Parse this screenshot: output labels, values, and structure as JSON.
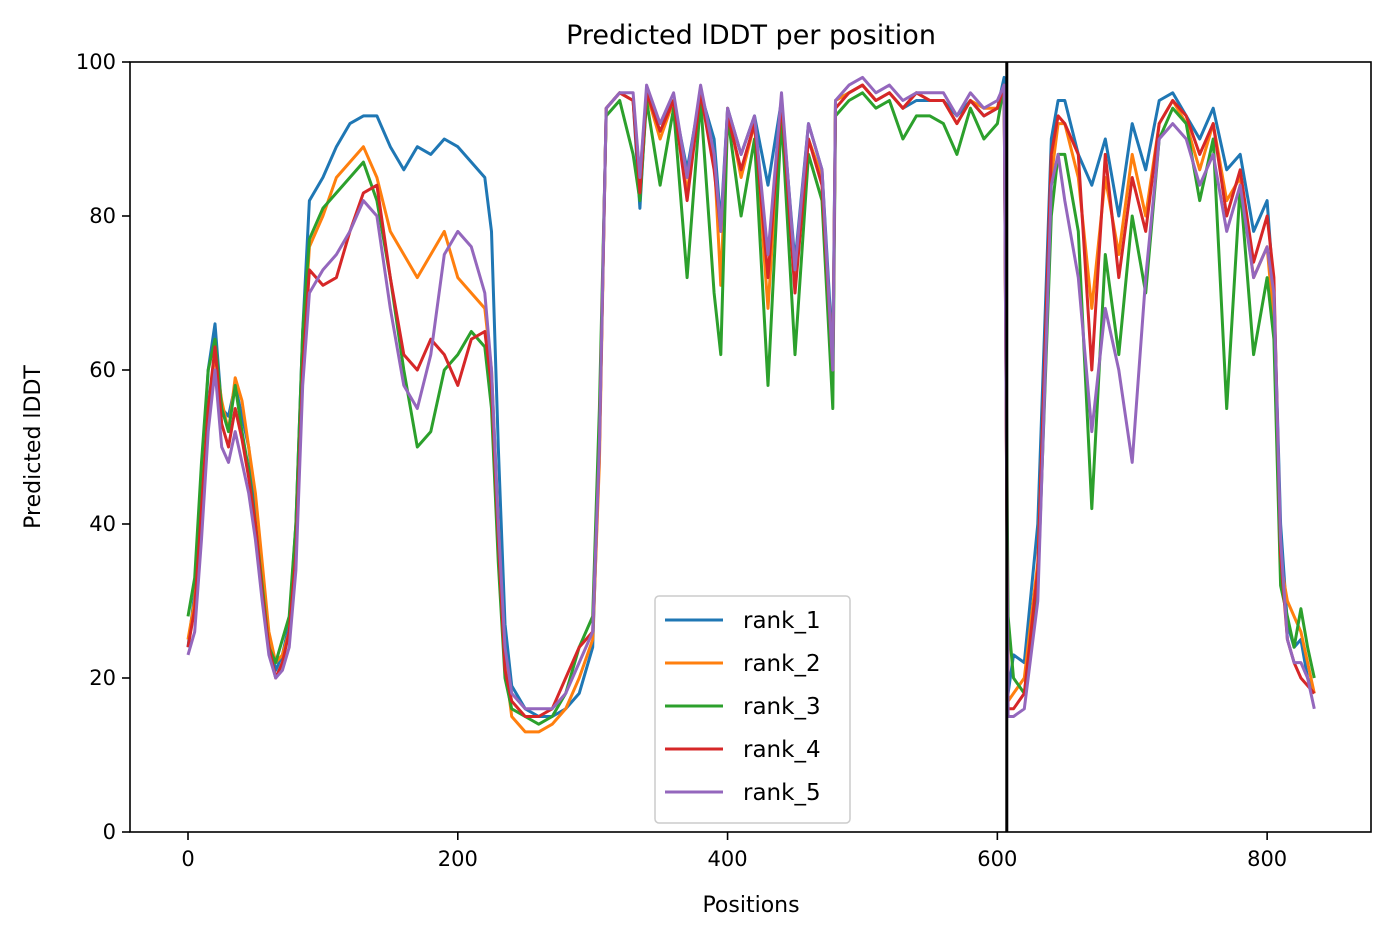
{
  "chart_data": {
    "type": "line",
    "title": "Predicted lDDT per position",
    "xlabel": "Positions",
    "ylabel": "Predicted lDDT",
    "xlim": [
      -43,
      877
    ],
    "ylim": [
      0,
      100
    ],
    "xticks": [
      0,
      200,
      400,
      600,
      800
    ],
    "yticks": [
      0,
      20,
      40,
      60,
      80,
      100
    ],
    "grid": false,
    "legend_position": "lower-center",
    "chain_break": 607,
    "series": [
      {
        "name": "rank_1",
        "color": "#1f77b4",
        "x": [
          0,
          5,
          10,
          15,
          20,
          25,
          30,
          35,
          40,
          45,
          50,
          55,
          60,
          65,
          70,
          75,
          80,
          85,
          90,
          100,
          110,
          120,
          130,
          140,
          150,
          160,
          170,
          180,
          190,
          200,
          210,
          220,
          225,
          230,
          235,
          240,
          250,
          260,
          270,
          280,
          290,
          300,
          305,
          310,
          320,
          330,
          335,
          340,
          350,
          360,
          370,
          380,
          390,
          395,
          400,
          410,
          420,
          430,
          440,
          450,
          460,
          470,
          478,
          480,
          490,
          500,
          510,
          520,
          530,
          540,
          550,
          560,
          570,
          580,
          590,
          600,
          605,
          608,
          612,
          620,
          630,
          640,
          645,
          650,
          660,
          670,
          680,
          690,
          700,
          710,
          720,
          730,
          740,
          750,
          760,
          770,
          780,
          790,
          800,
          805,
          810,
          815,
          820,
          825,
          830,
          835
        ],
        "y": [
          24,
          31,
          45,
          60,
          66,
          55,
          54,
          58,
          54,
          50,
          42,
          33,
          25,
          21,
          23,
          27,
          40,
          65,
          82,
          85,
          89,
          92,
          93,
          93,
          89,
          86,
          89,
          88,
          90,
          89,
          87,
          85,
          78,
          50,
          27,
          19,
          16,
          15,
          15,
          16,
          18,
          24,
          50,
          94,
          96,
          95,
          81,
          96,
          92,
          95,
          86,
          96,
          90,
          79,
          94,
          88,
          93,
          84,
          95,
          74,
          92,
          86,
          62,
          95,
          96,
          97,
          95,
          96,
          94,
          95,
          95,
          95,
          93,
          95,
          93,
          94,
          98,
          18,
          23,
          22,
          40,
          90,
          95,
          95,
          88,
          84,
          90,
          80,
          92,
          86,
          95,
          96,
          93,
          90,
          94,
          86,
          88,
          78,
          82,
          70,
          40,
          27,
          24,
          25,
          20,
          18
        ]
      },
      {
        "name": "rank_2",
        "color": "#ff7f0e",
        "x": [
          0,
          5,
          10,
          15,
          20,
          25,
          30,
          35,
          40,
          45,
          50,
          55,
          60,
          65,
          70,
          75,
          80,
          85,
          90,
          100,
          110,
          120,
          130,
          140,
          150,
          160,
          170,
          180,
          190,
          200,
          210,
          220,
          225,
          230,
          235,
          240,
          250,
          260,
          270,
          280,
          290,
          300,
          305,
          310,
          320,
          330,
          335,
          340,
          350,
          360,
          370,
          380,
          390,
          395,
          400,
          410,
          420,
          430,
          440,
          450,
          460,
          470,
          478,
          480,
          490,
          500,
          510,
          520,
          530,
          540,
          550,
          560,
          570,
          580,
          590,
          600,
          605,
          608,
          612,
          620,
          630,
          640,
          645,
          650,
          660,
          670,
          680,
          690,
          700,
          710,
          720,
          730,
          740,
          750,
          760,
          770,
          780,
          790,
          800,
          805,
          810,
          815,
          820,
          825,
          830,
          835
        ],
        "y": [
          25,
          30,
          43,
          55,
          62,
          56,
          52,
          59,
          56,
          50,
          44,
          35,
          26,
          22,
          23,
          26,
          38,
          62,
          76,
          80,
          85,
          87,
          89,
          85,
          78,
          75,
          72,
          75,
          78,
          72,
          70,
          68,
          60,
          40,
          22,
          15,
          13,
          13,
          14,
          16,
          20,
          25,
          48,
          94,
          96,
          95,
          85,
          96,
          90,
          95,
          83,
          96,
          88,
          71,
          94,
          85,
          92,
          68,
          95,
          72,
          90,
          85,
          60,
          95,
          96,
          97,
          95,
          96,
          94,
          96,
          95,
          95,
          92,
          95,
          94,
          94,
          97,
          17,
          18,
          20,
          35,
          85,
          92,
          92,
          85,
          68,
          85,
          75,
          88,
          80,
          92,
          95,
          92,
          86,
          92,
          82,
          85,
          72,
          76,
          66,
          35,
          30,
          28,
          26,
          22,
          18
        ]
      },
      {
        "name": "rank_3",
        "color": "#2ca02c",
        "x": [
          0,
          5,
          10,
          15,
          20,
          25,
          30,
          35,
          40,
          45,
          50,
          55,
          60,
          65,
          70,
          75,
          80,
          85,
          90,
          100,
          110,
          120,
          130,
          140,
          150,
          160,
          170,
          180,
          190,
          200,
          210,
          220,
          225,
          230,
          235,
          240,
          250,
          260,
          270,
          280,
          290,
          300,
          305,
          310,
          320,
          330,
          335,
          340,
          350,
          360,
          370,
          380,
          390,
          395,
          400,
          410,
          420,
          430,
          440,
          450,
          460,
          470,
          478,
          480,
          490,
          500,
          510,
          520,
          530,
          540,
          550,
          560,
          570,
          580,
          590,
          600,
          605,
          608,
          612,
          620,
          630,
          640,
          645,
          650,
          660,
          670,
          680,
          690,
          700,
          710,
          720,
          730,
          740,
          750,
          760,
          770,
          780,
          790,
          800,
          805,
          810,
          815,
          820,
          825,
          830,
          835
        ],
        "y": [
          28,
          33,
          48,
          60,
          64,
          55,
          52,
          58,
          52,
          47,
          40,
          32,
          24,
          22,
          25,
          28,
          40,
          65,
          77,
          81,
          83,
          85,
          87,
          82,
          72,
          60,
          50,
          52,
          60,
          62,
          65,
          63,
          55,
          35,
          20,
          16,
          15,
          14,
          15,
          18,
          24,
          28,
          55,
          93,
          95,
          88,
          82,
          95,
          84,
          94,
          72,
          95,
          70,
          62,
          93,
          80,
          90,
          58,
          93,
          62,
          88,
          82,
          55,
          93,
          95,
          96,
          94,
          95,
          90,
          93,
          93,
          92,
          88,
          94,
          90,
          92,
          97,
          28,
          20,
          18,
          32,
          80,
          88,
          88,
          78,
          42,
          75,
          62,
          80,
          70,
          90,
          94,
          92,
          82,
          90,
          55,
          84,
          62,
          72,
          64,
          32,
          28,
          24,
          29,
          24,
          20
        ]
      },
      {
        "name": "rank_4",
        "color": "#d62728",
        "x": [
          0,
          5,
          10,
          15,
          20,
          25,
          30,
          35,
          40,
          45,
          50,
          55,
          60,
          65,
          70,
          75,
          80,
          85,
          90,
          100,
          110,
          120,
          130,
          140,
          150,
          160,
          170,
          180,
          190,
          200,
          210,
          220,
          225,
          230,
          235,
          240,
          250,
          260,
          270,
          280,
          290,
          300,
          305,
          310,
          320,
          330,
          335,
          340,
          350,
          360,
          370,
          380,
          390,
          395,
          400,
          410,
          420,
          430,
          440,
          450,
          460,
          470,
          478,
          480,
          490,
          500,
          510,
          520,
          530,
          540,
          550,
          560,
          570,
          580,
          590,
          600,
          605,
          608,
          612,
          620,
          630,
          640,
          645,
          650,
          660,
          670,
          680,
          690,
          700,
          710,
          720,
          730,
          740,
          750,
          760,
          770,
          780,
          790,
          800,
          805,
          810,
          815,
          820,
          825,
          830,
          835
        ],
        "y": [
          24,
          29,
          42,
          55,
          63,
          53,
          50,
          55,
          51,
          46,
          40,
          31,
          24,
          20,
          22,
          26,
          36,
          60,
          73,
          71,
          72,
          78,
          83,
          84,
          72,
          62,
          60,
          64,
          62,
          58,
          64,
          65,
          58,
          38,
          21,
          17,
          15,
          15,
          16,
          20,
          24,
          26,
          50,
          94,
          96,
          95,
          83,
          96,
          91,
          95,
          82,
          96,
          86,
          78,
          93,
          86,
          92,
          72,
          95,
          70,
          90,
          84,
          60,
          94,
          96,
          97,
          95,
          96,
          94,
          96,
          95,
          95,
          92,
          95,
          93,
          94,
          97,
          16,
          16,
          18,
          34,
          88,
          93,
          92,
          88,
          60,
          88,
          72,
          85,
          78,
          92,
          95,
          93,
          88,
          92,
          80,
          86,
          74,
          80,
          72,
          36,
          25,
          22,
          20,
          19,
          18
        ]
      },
      {
        "name": "rank_5",
        "color": "#9467bd",
        "x": [
          0,
          5,
          10,
          15,
          20,
          25,
          30,
          35,
          40,
          45,
          50,
          55,
          60,
          65,
          70,
          75,
          80,
          85,
          90,
          100,
          110,
          120,
          130,
          140,
          150,
          160,
          170,
          180,
          190,
          200,
          210,
          220,
          225,
          230,
          235,
          240,
          250,
          260,
          270,
          280,
          290,
          300,
          305,
          310,
          320,
          330,
          335,
          340,
          350,
          360,
          370,
          380,
          390,
          395,
          400,
          410,
          420,
          430,
          440,
          450,
          460,
          470,
          478,
          480,
          490,
          500,
          510,
          520,
          530,
          540,
          550,
          560,
          570,
          580,
          590,
          600,
          605,
          608,
          612,
          620,
          630,
          640,
          645,
          650,
          660,
          670,
          680,
          690,
          700,
          710,
          720,
          730,
          740,
          750,
          760,
          770,
          780,
          790,
          800,
          805,
          810,
          815,
          820,
          825,
          830,
          835
        ],
        "y": [
          23,
          26,
          38,
          52,
          60,
          50,
          48,
          52,
          48,
          44,
          38,
          30,
          23,
          20,
          21,
          24,
          34,
          58,
          70,
          73,
          75,
          78,
          82,
          80,
          68,
          58,
          55,
          62,
          75,
          78,
          76,
          70,
          60,
          40,
          24,
          18,
          16,
          16,
          16,
          18,
          22,
          26,
          50,
          94,
          96,
          96,
          85,
          97,
          92,
          96,
          85,
          97,
          88,
          78,
          94,
          88,
          93,
          75,
          96,
          73,
          92,
          86,
          60,
          95,
          97,
          98,
          96,
          97,
          95,
          96,
          96,
          96,
          93,
          96,
          94,
          95,
          97,
          15,
          15,
          16,
          30,
          84,
          88,
          82,
          72,
          52,
          68,
          60,
          48,
          72,
          90,
          92,
          90,
          84,
          88,
          78,
          84,
          72,
          76,
          70,
          38,
          25,
          22,
          22,
          20,
          16
        ]
      }
    ]
  }
}
